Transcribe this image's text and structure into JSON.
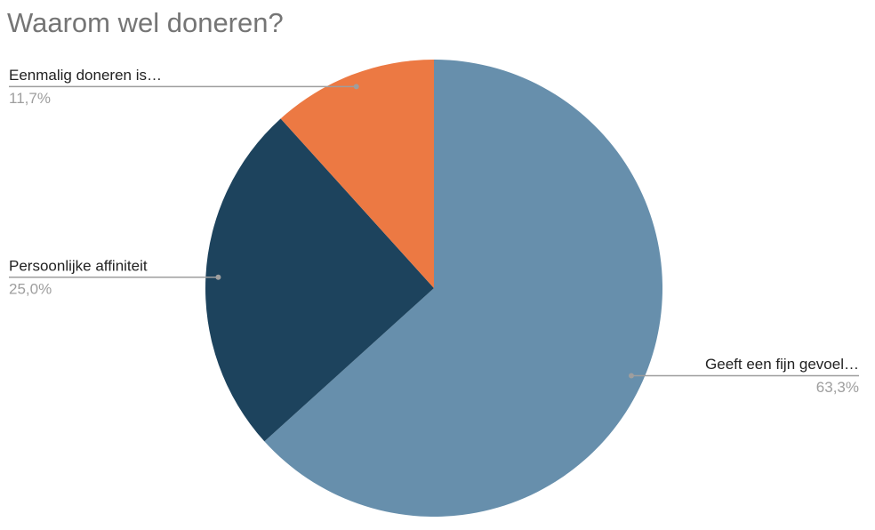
{
  "chart_data": {
    "type": "pie",
    "title": "Waarom wel doneren?",
    "categories": [
      "Geeft een fijn gevoel…",
      "Persoonlijke affiniteit",
      "Eenmalig doneren is…"
    ],
    "values": [
      63.3,
      25.0,
      11.7
    ],
    "value_labels": [
      "63,3%",
      "25,0%",
      "11,7%"
    ],
    "colors": [
      "#678fac",
      "#1d435d",
      "#ec7943"
    ]
  }
}
